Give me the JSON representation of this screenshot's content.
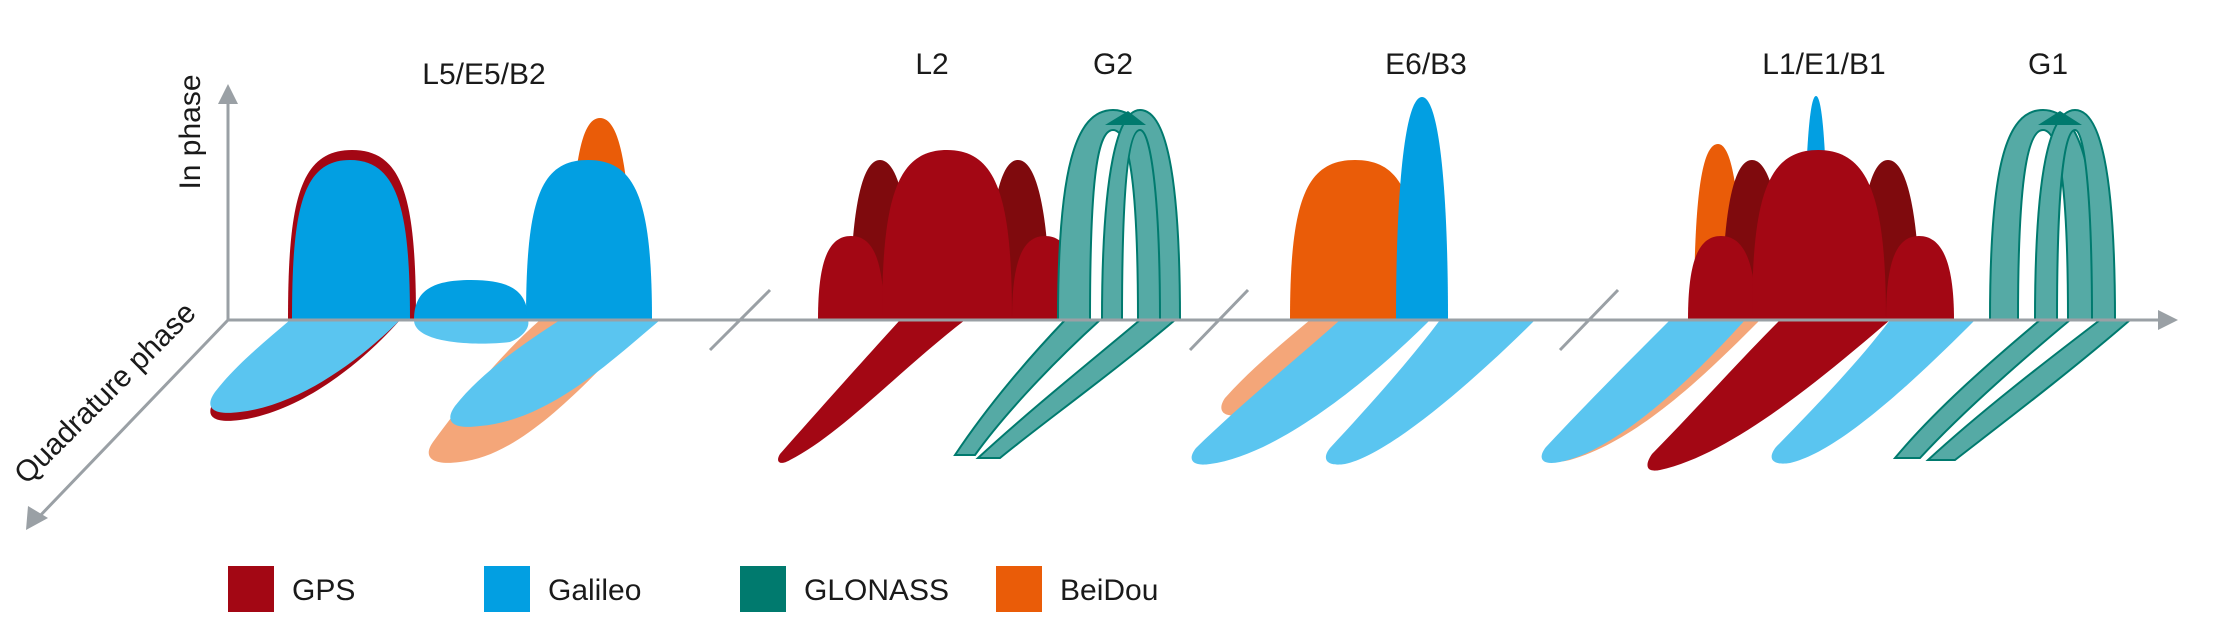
{
  "colors": {
    "gps": "#a30714",
    "gps_dark": "#7f0a0d",
    "galileo": "#029fe2",
    "galileo_light": "#5ac5f0",
    "glonass": "#007a6e",
    "glonass_fill": "#55aaa5",
    "beidou": "#ea5c08",
    "beidou_light": "#f4a679",
    "axis": "#9aa0a5"
  },
  "bands": [
    "L5/E5/B2",
    "L2",
    "G2",
    "E6/B3",
    "L1/E1/B1",
    "G1"
  ],
  "axes": {
    "in_phase": "In phase",
    "quadrature_phase": "Quadrature phase"
  },
  "legend": [
    {
      "name": "GPS",
      "color": "#a30714"
    },
    {
      "name": "Galileo",
      "color": "#029fe2"
    },
    {
      "name": "GLONASS",
      "color": "#007a6e"
    },
    {
      "name": "BeiDou",
      "color": "#ea5c08"
    }
  ]
}
